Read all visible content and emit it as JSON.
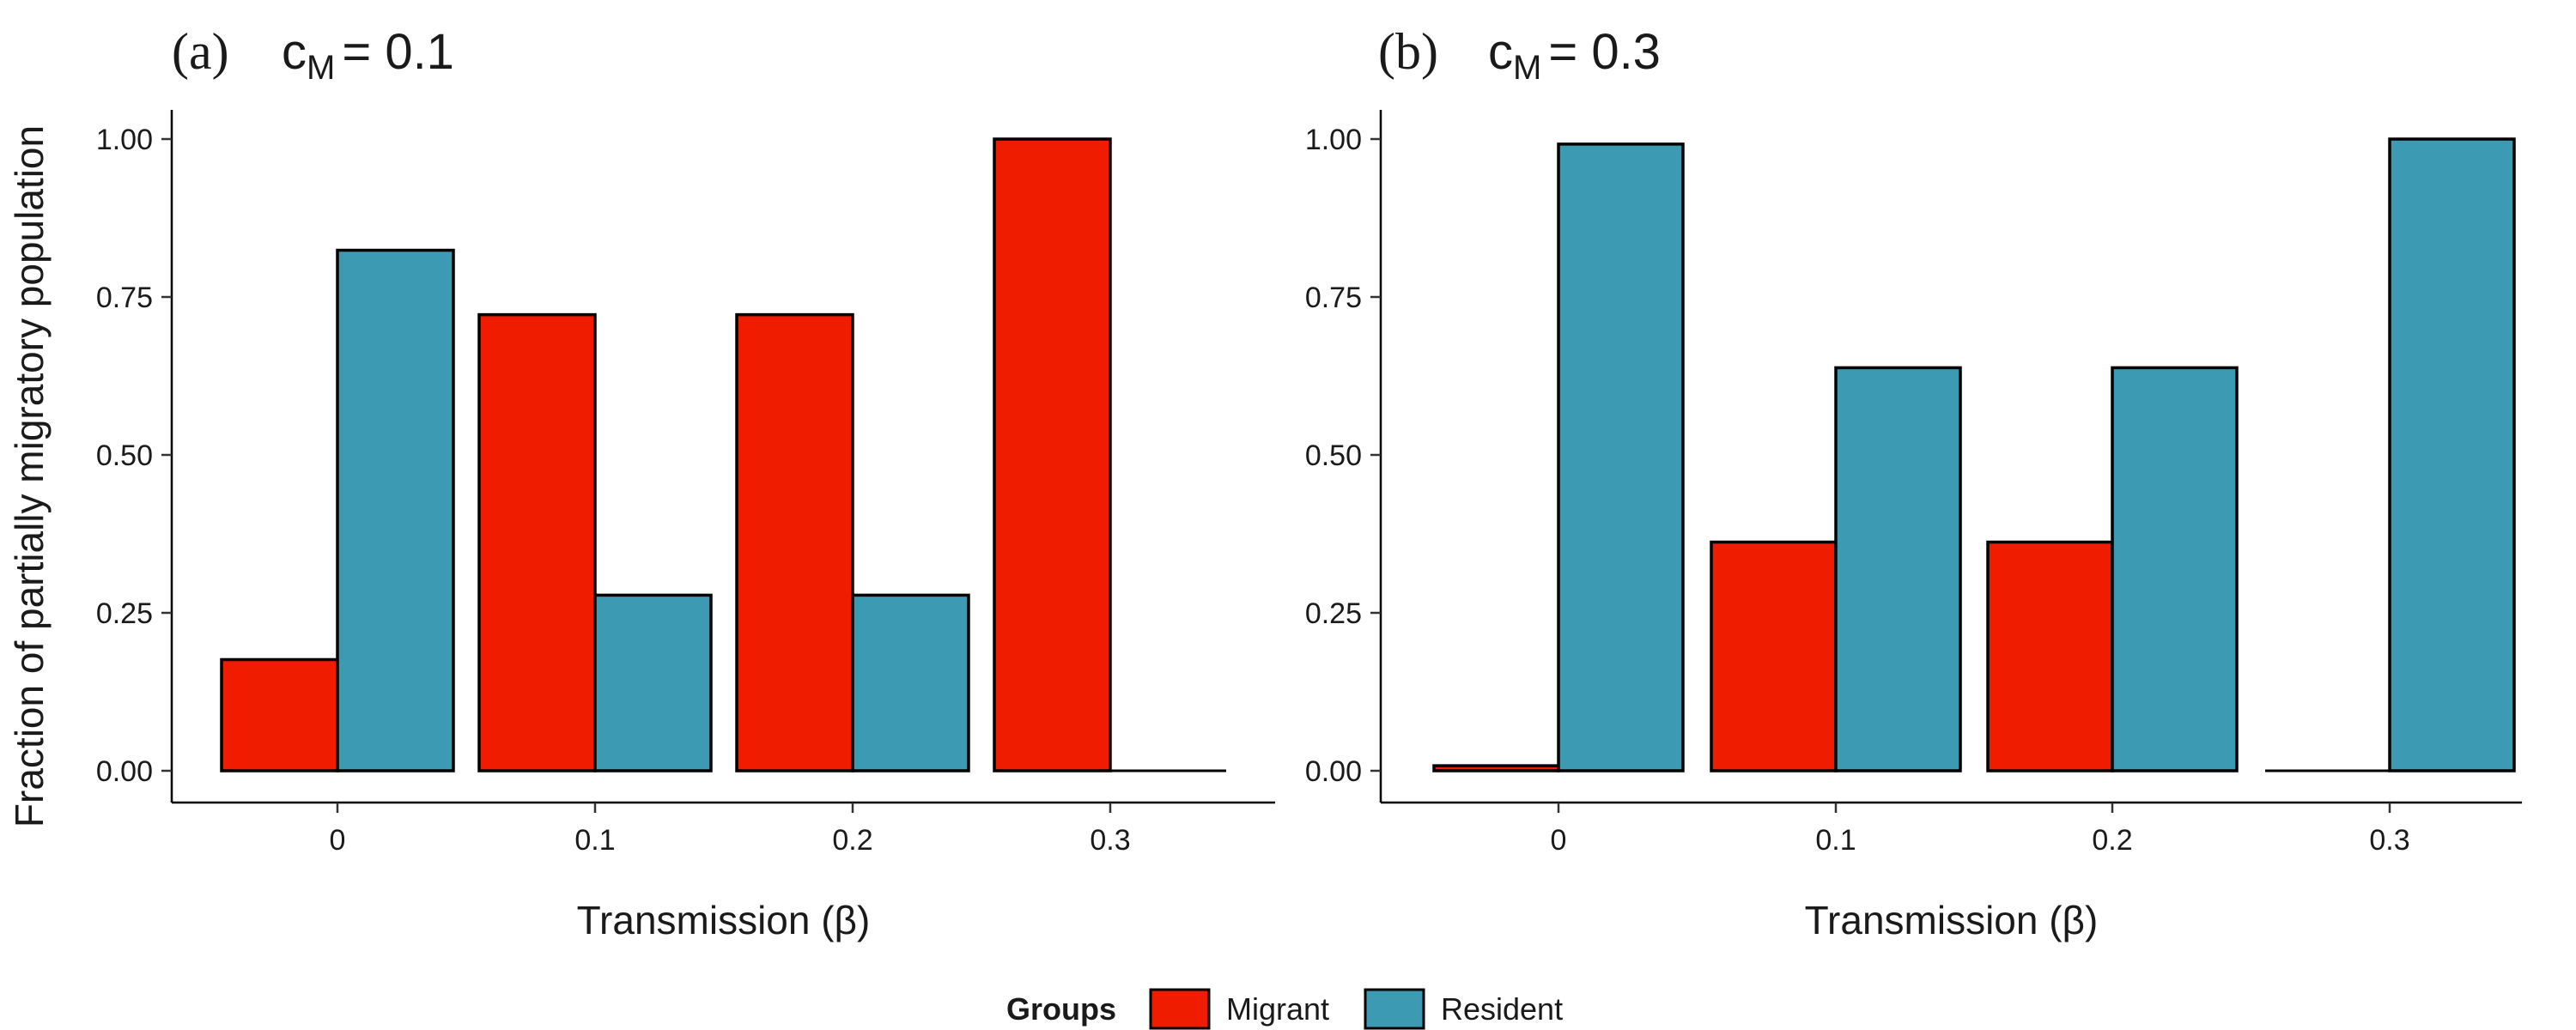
{
  "ylabel": "Fraction of partially migratory population",
  "legend": {
    "title": "Groups",
    "items": [
      {
        "label": "Migrant",
        "color": "#F01C00"
      },
      {
        "label": "Resident",
        "color": "#3C9AB2"
      }
    ]
  },
  "panels": [
    {
      "tag": "(a)",
      "param": "c",
      "param_sub": "M",
      "eq": "= 0.1"
    },
    {
      "tag": "(b)",
      "param": "c",
      "param_sub": "M",
      "eq": "= 0.3"
    }
  ],
  "chart_data": [
    {
      "type": "bar",
      "title": "(a) cM = 0.1",
      "xlabel": "Transmission (β)",
      "ylabel": "Fraction of partially migratory population",
      "categories": [
        "0",
        "0.1",
        "0.2",
        "0.3"
      ],
      "series": [
        {
          "name": "Migrant",
          "color": "#F01C00",
          "values": [
            0.176,
            0.722,
            0.722,
            1.0
          ]
        },
        {
          "name": "Resident",
          "color": "#3C9AB2",
          "values": [
            0.824,
            0.278,
            0.278,
            0.0
          ]
        }
      ],
      "ylim": [
        0,
        1
      ],
      "yticks": [
        "0.00",
        "0.25",
        "0.50",
        "0.75",
        "1.00"
      ],
      "grid": false
    },
    {
      "type": "bar",
      "title": "(b) cM = 0.3",
      "xlabel": "Transmission (β)",
      "ylabel": "",
      "categories": [
        "0",
        "0.1",
        "0.2",
        "0.3"
      ],
      "series": [
        {
          "name": "Migrant",
          "color": "#F01C00",
          "values": [
            0.008,
            0.362,
            0.362,
            0.0
          ]
        },
        {
          "name": "Resident",
          "color": "#3C9AB2",
          "values": [
            0.992,
            0.638,
            0.638,
            1.0
          ]
        }
      ],
      "ylim": [
        0,
        1
      ],
      "yticks": [
        "0.00",
        "0.25",
        "0.50",
        "0.75",
        "1.00"
      ],
      "grid": false
    }
  ]
}
